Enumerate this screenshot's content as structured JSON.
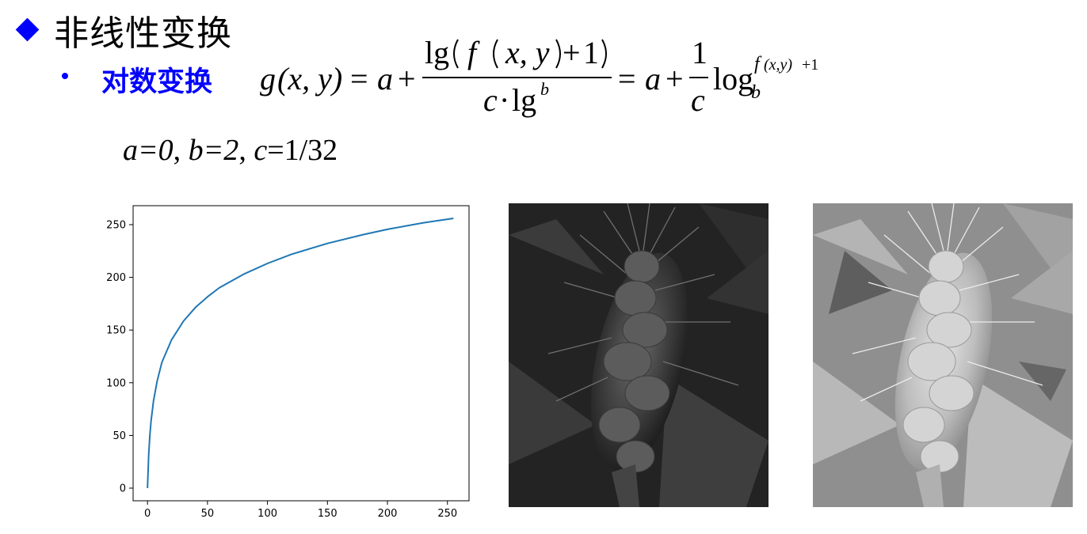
{
  "slide": {
    "title": "非线性变换",
    "subtitle": "对数变换",
    "params": {
      "a": "a=0",
      "b": "b=2",
      "c_name": "c",
      "c_value": "=1/32",
      "sep": ", "
    }
  },
  "formula": {
    "lhs_g": "g",
    "lhs_args": "(x, y)",
    "eq": "=",
    "a": "a",
    "plus": "+",
    "lg": "lg",
    "f": "f",
    "xy": "x, y",
    "one": "1",
    "c": "c",
    "dot": "·",
    "b": "b",
    "log": "log",
    "exp_f": "f",
    "exp_xy": "(x,y)",
    "exp_plus1": "+1"
  },
  "images": {
    "original": {
      "icon": "wheat-ear-photo",
      "tone": "dark"
    },
    "transformed": {
      "icon": "wheat-ear-photo",
      "tone": "bright"
    }
  },
  "chart_data": {
    "type": "line",
    "title": "",
    "xlabel": "",
    "ylabel": "",
    "xlim": [
      -12,
      268
    ],
    "ylim": [
      -12,
      268
    ],
    "x_ticks": [
      0,
      50,
      100,
      150,
      200,
      250
    ],
    "y_ticks": [
      0,
      50,
      100,
      150,
      200,
      250
    ],
    "grid": false,
    "series": [
      {
        "color": "#1f77b4",
        "x": [
          0,
          1,
          2,
          3,
          5,
          8,
          12,
          20,
          30,
          40,
          50,
          60,
          80,
          100,
          120,
          150,
          180,
          200,
          230,
          255
        ],
        "y": [
          0,
          32,
          50.7,
          64,
          82.7,
          101.4,
          119.4,
          140.6,
          158.5,
          171.5,
          181.5,
          190.2,
          202.9,
          213.2,
          221.9,
          232.2,
          240.6,
          245.6,
          251.8,
          256
        ]
      }
    ]
  }
}
